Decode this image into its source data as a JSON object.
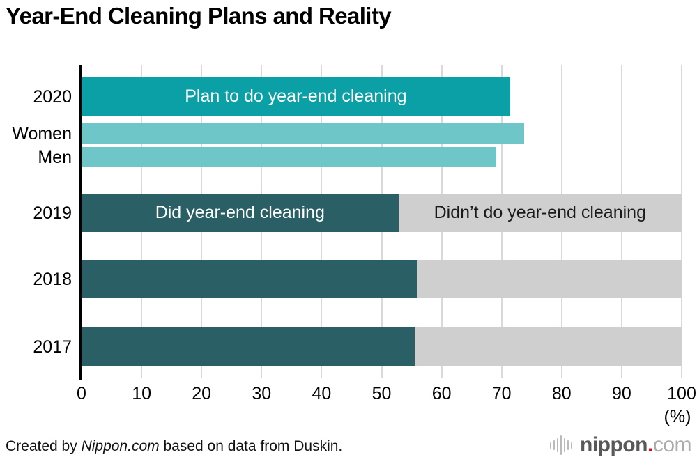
{
  "title": "Year-End Cleaning Plans and Reality",
  "chart_data": {
    "type": "bar",
    "orientation": "horizontal",
    "title": "Year-End Cleaning Plans and Reality",
    "xlabel_unit": "(%)",
    "xlim": [
      0,
      100
    ],
    "x_ticks": [
      0,
      10,
      20,
      30,
      40,
      50,
      60,
      70,
      80,
      90,
      100
    ],
    "grid": true,
    "labels_in_bars": true,
    "colors": {
      "plan": "#0ba0a6",
      "plan_sub": "#6fc6c9",
      "did": "#2a6065",
      "remainder": "#cfcfcf",
      "grid": "#d9d9d9",
      "axis": "#000000",
      "label_on_teal": "#ffffff",
      "label_on_gray": "#1a1a1a"
    },
    "rows": [
      {
        "label": "2020",
        "series": "plan",
        "value": 71.4,
        "bar_label": "Plan to do year-end cleaning"
      },
      {
        "label": "Women",
        "series": "plan_sub",
        "value": 73.7
      },
      {
        "label": "Men",
        "series": "plan_sub",
        "value": 69.1
      },
      {
        "label": "2019",
        "series": "did",
        "value": 52.8,
        "remainder": 47.2,
        "bar_label": "Did year-end cleaning",
        "remainder_label": "Didn’t do year-end cleaning"
      },
      {
        "label": "2018",
        "series": "did",
        "value": 55.9,
        "remainder": 44.1
      },
      {
        "label": "2017",
        "series": "did",
        "value": 55.5,
        "remainder": 44.5
      }
    ]
  },
  "footer": {
    "credit_prefix": "Created by ",
    "credit_source": "Nippon.com",
    "credit_suffix": " based on data from Duskin.",
    "logo": {
      "text_main": "nippon",
      "text_dot": ".",
      "text_tld": "com",
      "dot_color": "#e60012"
    }
  }
}
